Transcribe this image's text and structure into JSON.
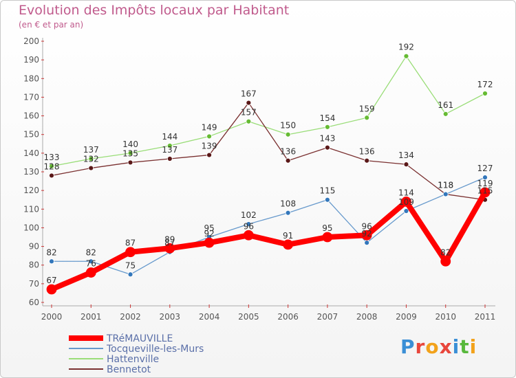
{
  "header": {
    "title": "Evolution des Impôts locaux par Habitant",
    "subtitle": "(en € et par an)"
  },
  "logo": {
    "text": "Proxiti",
    "letters": [
      "P",
      "r",
      "o",
      "x",
      "i",
      "t",
      "i"
    ],
    "colors": [
      "#3a8fd6",
      "#e8463c",
      "#f2a21b",
      "#e8463c",
      "#3a8fd6",
      "#58b83c",
      "#f2a21b"
    ]
  },
  "chart_data": {
    "type": "line",
    "x": [
      "2000",
      "2001",
      "2002",
      "2003",
      "2004",
      "2005",
      "2006",
      "2007",
      "2008",
      "2009",
      "2010",
      "2011"
    ],
    "yticks": [
      60,
      70,
      80,
      90,
      100,
      110,
      120,
      130,
      140,
      150,
      160,
      170,
      180,
      190,
      200
    ],
    "ylim": [
      60,
      200
    ],
    "grid": false,
    "legend": "bottom-left",
    "series": [
      {
        "name": "Hattenville",
        "color": "#99dd77",
        "marker": "#66bb33",
        "values": [
          133,
          137,
          140,
          144,
          149,
          157,
          150,
          154,
          159,
          192,
          161,
          172
        ]
      },
      {
        "name": "Bennetot",
        "color": "#7a3030",
        "marker": "#5a1818",
        "values": [
          128,
          132,
          135,
          137,
          139,
          167,
          136,
          143,
          136,
          134,
          118,
          115
        ]
      },
      {
        "name": "Tocqueville-les-Murs",
        "color": "#6699cc",
        "marker": "#3377bb",
        "values": [
          82,
          82,
          75,
          87,
          95,
          102,
          108,
          115,
          92,
          109,
          118,
          127
        ]
      },
      {
        "name": "TRéMAUVILLE",
        "color": "#ff0000",
        "marker": "#ff0000",
        "values": [
          67,
          76,
          87,
          89,
          92,
          96,
          91,
          95,
          96,
          114,
          82,
          119
        ]
      }
    ],
    "legend_order": [
      "TRéMAUVILLE",
      "Tocqueville-les-Murs",
      "Hattenville",
      "Bennetot"
    ]
  }
}
